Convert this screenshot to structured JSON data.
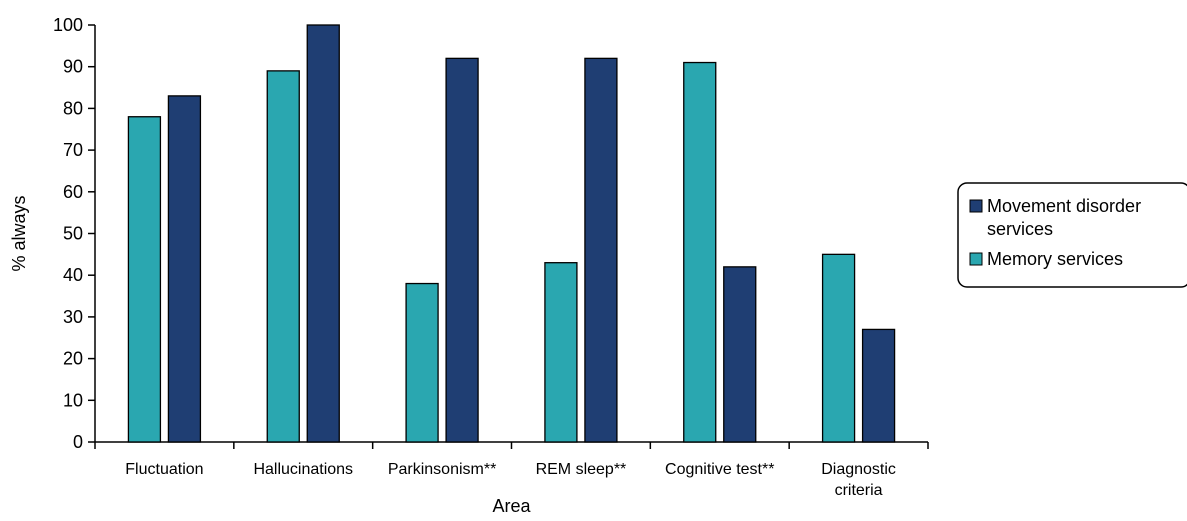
{
  "chart_data": {
    "type": "bar",
    "categories": [
      [
        "Fluctuation"
      ],
      [
        "Hallucinations"
      ],
      [
        "Parkinsonism**"
      ],
      [
        "REM sleep**"
      ],
      [
        "Cognitive test**"
      ],
      [
        "Diagnostic",
        "criteria"
      ]
    ],
    "series": [
      {
        "name": "Memory services",
        "color": "#2aa7b0",
        "values": [
          78,
          89,
          38,
          43,
          91,
          45
        ]
      },
      {
        "name": "Movement disorder services",
        "color": "#1f3e73",
        "values": [
          83,
          100,
          92,
          92,
          42,
          27
        ]
      }
    ],
    "xlabel": "Area",
    "ylabel": "% always",
    "ylim": [
      0,
      100
    ],
    "yticks": [
      0,
      10,
      20,
      30,
      40,
      50,
      60,
      70,
      80,
      90,
      100
    ],
    "grid": false,
    "legend": {
      "placement": "right",
      "entries": [
        {
          "lines": [
            "Movement disorder",
            "services"
          ],
          "color": "#1f3e73"
        },
        {
          "lines": [
            "Memory services"
          ],
          "color": "#2aa7b0"
        }
      ]
    }
  }
}
